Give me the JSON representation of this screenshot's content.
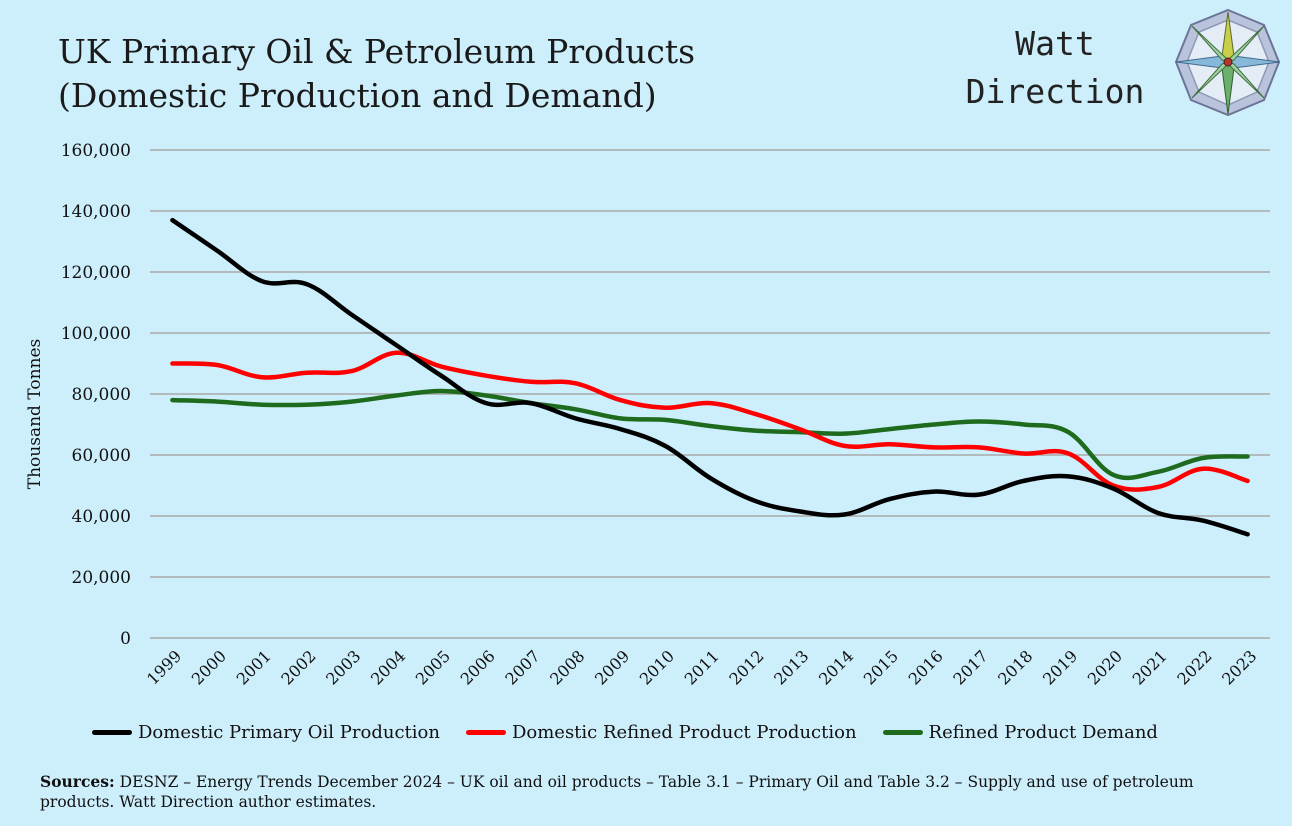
{
  "title": {
    "line1": "UK Primary Oil & Petroleum Products",
    "line2": "(Domestic Production and Demand)"
  },
  "brand": {
    "line1": "Watt",
    "line2": "Direction",
    "logo_icon": "compass-rose-icon"
  },
  "sources": {
    "label": "Sources:",
    "text": " DESNZ – Energy Trends December 2024 – UK oil and oil products – Table 3.1 – Primary Oil  and Table 3.2 – Supply and use of petroleum products. Watt Direction author estimates."
  },
  "colors": {
    "background": "#cdeefb",
    "grid": "#a9a9a9"
  },
  "chart_data": {
    "type": "line",
    "title": "UK Primary Oil & Petroleum Products (Domestic Production and Demand)",
    "xlabel": "",
    "ylabel": "Thousand Tonnes",
    "ylim": [
      0,
      160000
    ],
    "yticks": [
      "0",
      "20,000",
      "40,000",
      "60,000",
      "80,000",
      "100,000",
      "120,000",
      "140,000",
      "160,000"
    ],
    "grid": true,
    "legend": "bottom",
    "x": [
      "1999",
      "2000",
      "2001",
      "2002",
      "2003",
      "2004",
      "2005",
      "2006",
      "2007",
      "2008",
      "2009",
      "2010",
      "2011",
      "2012",
      "2013",
      "2014",
      "2015",
      "2016",
      "2017",
      "2018",
      "2019",
      "2020",
      "2021",
      "2022",
      "2023"
    ],
    "series": [
      {
        "name": "Domestic Primary Oil Production",
        "color": "#000000",
        "values": [
          137000,
          127000,
          117000,
          116000,
          106000,
          96000,
          86000,
          77000,
          77000,
          72000,
          68500,
          63000,
          52500,
          45000,
          41500,
          40500,
          45500,
          48000,
          47000,
          51500,
          53000,
          49000,
          41000,
          38500,
          34000
        ]
      },
      {
        "name": "Domestic Refined Product Production",
        "color": "#ff0000",
        "values": [
          90000,
          89500,
          85500,
          87000,
          87500,
          93500,
          89000,
          86000,
          84000,
          83500,
          78000,
          75500,
          77000,
          73500,
          68500,
          63000,
          63500,
          62500,
          62500,
          60500,
          60500,
          50000,
          49500,
          55500,
          51500
        ]
      },
      {
        "name": "Refined Product Demand",
        "color": "#1e6b1e",
        "values": [
          78000,
          77500,
          76500,
          76500,
          77500,
          79500,
          81000,
          79500,
          77000,
          75000,
          72000,
          71500,
          69500,
          68000,
          67500,
          67000,
          68500,
          70000,
          71000,
          70000,
          67500,
          53500,
          54500,
          59000,
          59500
        ]
      }
    ]
  }
}
